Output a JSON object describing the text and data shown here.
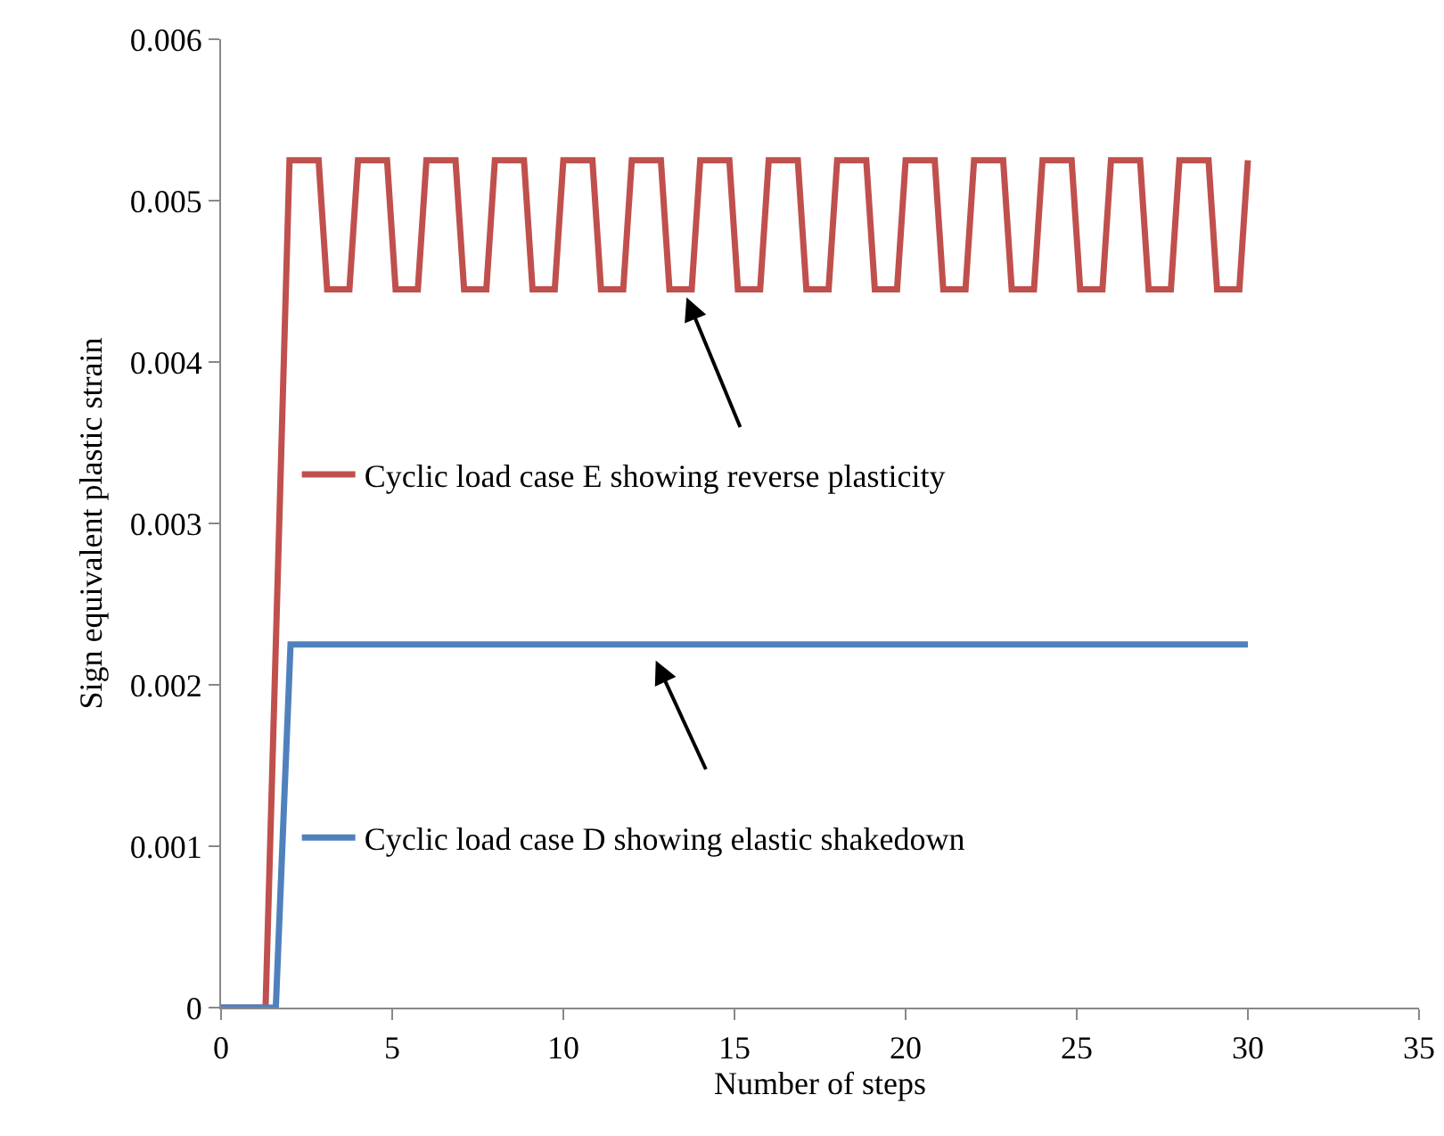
{
  "chart_data": {
    "type": "line",
    "xlabel": "Number of steps",
    "ylabel": "Sign equivalent plastic strain",
    "xlim": [
      0,
      35
    ],
    "xticks": [
      0,
      5,
      10,
      15,
      20,
      25,
      30,
      35
    ],
    "ylim": [
      0,
      0.006
    ],
    "yticks": [
      0,
      0.001,
      0.002,
      0.003,
      0.004,
      0.005,
      0.006
    ],
    "grid": false,
    "legend": "left",
    "marker": "none",
    "line_style": "solid",
    "series": [
      {
        "name": "Cyclic load case E showing reverse plasticity",
        "color": "#c0504d",
        "x": [
          0,
          1.3,
          2,
          2.85,
          3.1,
          3.75,
          4,
          4.85,
          5.1,
          5.75,
          6,
          6.85,
          7.1,
          7.75,
          8,
          8.85,
          9.1,
          9.75,
          10,
          10.85,
          11.1,
          11.75,
          12,
          12.85,
          13.1,
          13.75,
          14,
          14.85,
          15.1,
          15.75,
          16,
          16.85,
          17.1,
          17.75,
          18,
          18.85,
          19.1,
          19.75,
          20,
          20.85,
          21.1,
          21.75,
          22,
          22.85,
          23.1,
          23.75,
          24,
          24.85,
          25.1,
          25.75,
          26,
          26.85,
          27.1,
          27.75,
          28,
          28.85,
          29.1,
          29.75,
          30
        ],
        "values": [
          0,
          0,
          0.00525,
          0.00525,
          0.00445,
          0.00445,
          0.00525,
          0.00525,
          0.00445,
          0.00445,
          0.00525,
          0.00525,
          0.00445,
          0.00445,
          0.00525,
          0.00525,
          0.00445,
          0.00445,
          0.00525,
          0.00525,
          0.00445,
          0.00445,
          0.00525,
          0.00525,
          0.00445,
          0.00445,
          0.00525,
          0.00525,
          0.00445,
          0.00445,
          0.00525,
          0.00525,
          0.00445,
          0.00445,
          0.00525,
          0.00525,
          0.00445,
          0.00445,
          0.00525,
          0.00525,
          0.00445,
          0.00445,
          0.00525,
          0.00525,
          0.00445,
          0.00445,
          0.00525,
          0.00525,
          0.00445,
          0.00445,
          0.00525,
          0.00525,
          0.00445,
          0.00445,
          0.00525,
          0.00525,
          0.00445,
          0.00445,
          0.00525
        ]
      },
      {
        "name": "Cyclic load case D showing elastic shakedown",
        "color": "#4f81bd",
        "x": [
          0,
          1.35,
          1.6,
          2.03,
          30
        ],
        "values": [
          0,
          0,
          0,
          0.00225,
          0.00225
        ]
      }
    ]
  }
}
